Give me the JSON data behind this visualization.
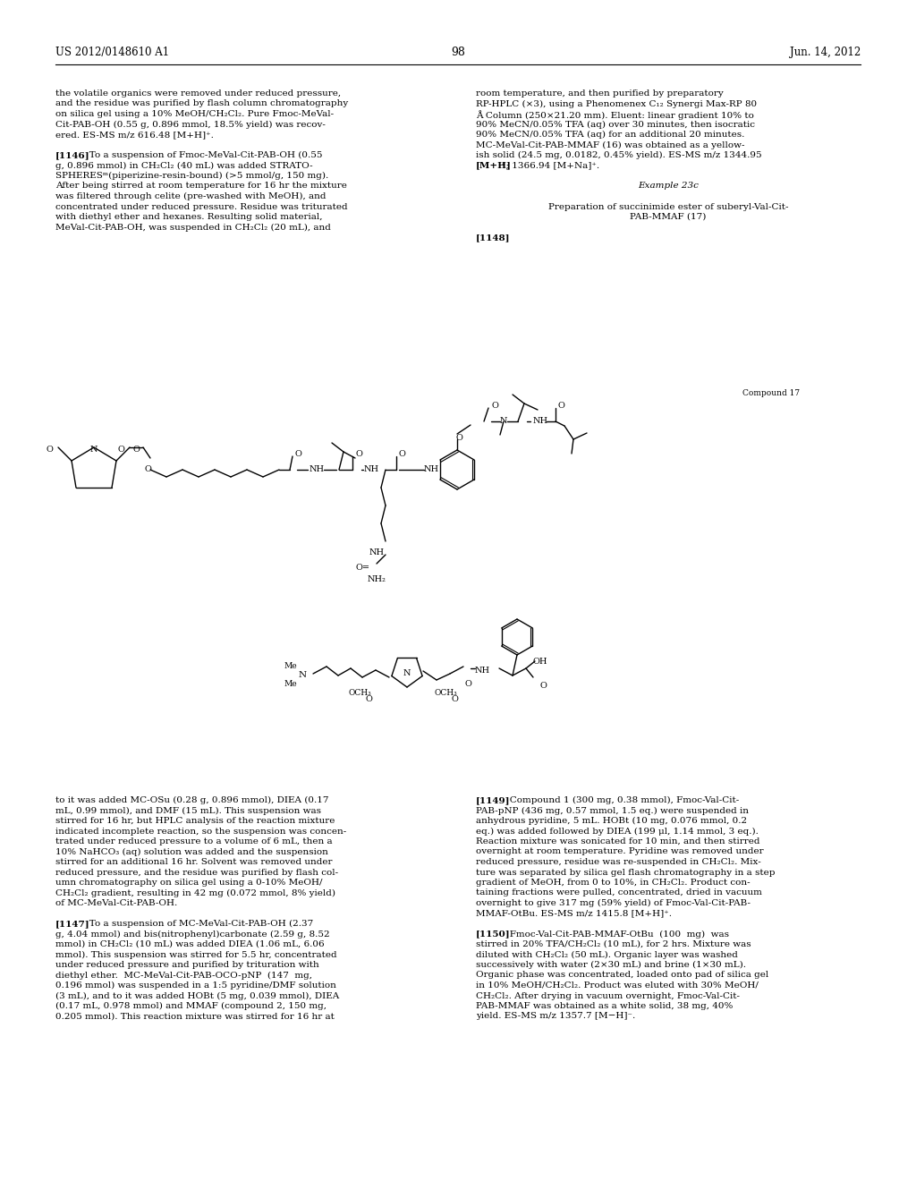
{
  "page_num": "98",
  "patent_num": "US 2012/0148610 A1",
  "patent_date": "Jun. 14, 2012",
  "bg_color": "#ffffff",
  "text_color": "#000000",
  "font_size_body": 7.5,
  "font_size_small": 6.5,
  "left_col_text": [
    "the volatile organics were removed under reduced pressure,",
    "and the residue was purified by flash column chromatography",
    "on silica gel using a 10% MeOH/CH₂Cl₂. Pure Fmoc-MeVal-",
    "Cit-PAB-OH (0.55 g, 0.896 mmol, 18.5% yield) was recov-",
    "ered. ES-MS m/z 616.48 [M+H]⁺.",
    "",
    "[1146]   To a suspension of Fmoc-MeVal-Cit-PAB-OH (0.55",
    "g, 0.896 mmol) in CH₂Cl₂ (40 mL) was added STRATO-",
    "SPHERESᵐ(piperizine-resin-bound) (>5 mmol/g, 150 mg).",
    "After being stirred at room temperature for 16 hr the mixture",
    "was filtered through celite (pre-washed with MeOH), and",
    "concentrated under reduced pressure. Residue was triturated",
    "with diethyl ether and hexanes. Resulting solid material,",
    "MeVal-Cit-PAB-OH, was suspended in CH₂Cl₂ (20 mL), and"
  ],
  "right_col_text": [
    "room temperature, and then purified by preparatory",
    "RP-HPLC (×3), using a Phenomenex C₁₂ Synergi Max-RP 80",
    "Å Column (250×21.20 mm). Eluent: linear gradient 10% to",
    "90% MeCN/0.05% TFA (aq) over 30 minutes, then isocratic",
    "90% MeCN/0.05% TFA (aq) for an additional 20 minutes.",
    "MC-MeVal-Cit-PAB-MMAF (16) was obtained as a yellow-",
    "ish solid (24.5 mg, 0.0182, 0.45% yield). ES-MS m/z 1344.95",
    "[M+H]⁺; 1366.94 [M+Na]⁺.",
    "",
    "Example 23c",
    "",
    "Preparation of succinimide ester of suberyl-Val-Cit-",
    "PAB-MMAF (17)",
    "",
    "[1148]"
  ],
  "bottom_left_col": [
    "to it was added MC-OSu (0.28 g, 0.896 mmol), DIEA (0.17",
    "mL, 0.99 mmol), and DMF (15 mL). This suspension was",
    "stirred for 16 hr, but HPLC analysis of the reaction mixture",
    "indicated incomplete reaction, so the suspension was concen-",
    "trated under reduced pressure to a volume of 6 mL, then a",
    "10% NaHCO₃ (aq) solution was added and the suspension",
    "stirred for an additional 16 hr. Solvent was removed under",
    "reduced pressure, and the residue was purified by flash col-",
    "umn chromatography on silica gel using a 0-10% MeOH/",
    "CH₂Cl₂ gradient, resulting in 42 mg (0.072 mmol, 8% yield)",
    "of MC-MeVal-Cit-PAB-OH.",
    "",
    "[1147]   To a suspension of MC-MeVal-Cit-PAB-OH (2.37",
    "g, 4.04 mmol) and bis(nitrophenyl)carbonate (2.59 g, 8.52",
    "mmol) in CH₂Cl₂ (10 mL) was added DIEA (1.06 mL, 6.06",
    "mmol). This suspension was stirred for 5.5 hr, concentrated",
    "under reduced pressure and purified by trituration with",
    "diethyl ether.  MC-MeVal-Cit-PAB-OCO-pNP  (147  mg,",
    "0.196 mmol) was suspended in a 1:5 pyridine/DMF solution",
    "(3 mL), and to it was added HOBt (5 mg, 0.039 mmol), DIEA",
    "(0.17 mL, 0.978 mmol) and MMAF (compound 2, 150 mg,",
    "0.205 mmol). This reaction mixture was stirred for 16 hr at"
  ],
  "bottom_right_col": [
    "[1149]   Compound 1 (300 mg, 0.38 mmol), Fmoc-Val-Cit-",
    "PAB-pNP (436 mg, 0.57 mmol, 1.5 eq.) were suspended in",
    "anhydrous pyridine, 5 mL. HOBt (10 mg, 0.076 mmol, 0.2",
    "eq.) was added followed by DIEA (199 μl, 1.14 mmol, 3 eq.).",
    "Reaction mixture was sonicated for 10 min, and then stirred",
    "overnight at room temperature. Pyridine was removed under",
    "reduced pressure, residue was re-suspended in CH₂Cl₂. Mix-",
    "ture was separated by silica gel flash chromatography in a step",
    "gradient of MeOH, from 0 to 10%, in CH₂Cl₂. Product con-",
    "taining fractions were pulled, concentrated, dried in vacuum",
    "overnight to give 317 mg (59% yield) of Fmoc-Val-Cit-PAB-",
    "MMAF-OtBu. ES-MS m/z 1415.8 [M+H]⁺.",
    "",
    "[1150]   Fmoc-Val-Cit-PAB-MMAF-OtBu  (100  mg)  was",
    "stirred in 20% TFA/CH₂Cl₂ (10 mL), for 2 hrs. Mixture was",
    "diluted with CH₂Cl₂ (50 mL). Organic layer was washed",
    "successively with water (2×30 mL) and brine (1×30 mL).",
    "Organic phase was concentrated, loaded onto pad of silica gel",
    "in 10% MeOH/CH₂Cl₂. Product was eluted with 30% MeOH/",
    "CH₂Cl₂. After drying in vacuum overnight, Fmoc-Val-Cit-",
    "PAB-MMAF was obtained as a white solid, 38 mg, 40%",
    "yield. ES-MS m/z 1357.7 [M−H]⁻."
  ]
}
